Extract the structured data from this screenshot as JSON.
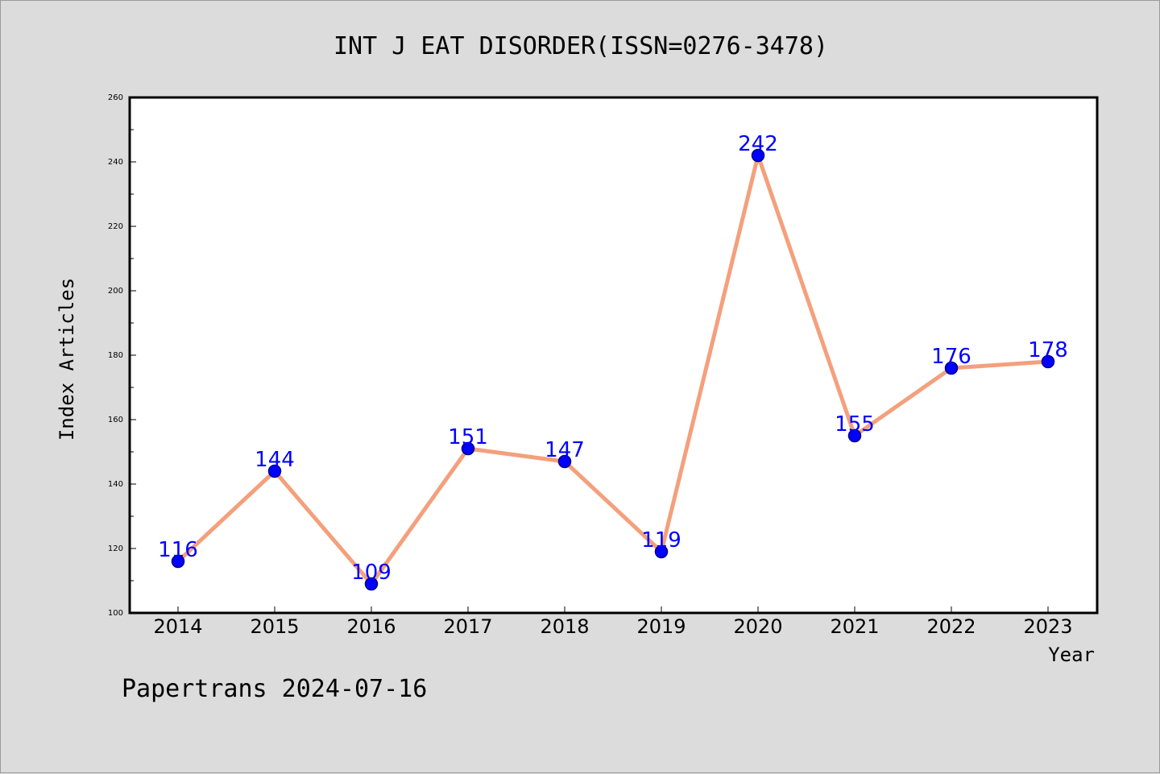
{
  "chart_data": {
    "type": "line",
    "title": "INT J EAT DISORDER(ISSN=0276-3478)",
    "xlabel": "Year",
    "ylabel": "Index Articles",
    "categories": [
      "2014",
      "2015",
      "2016",
      "2017",
      "2018",
      "2019",
      "2020",
      "2021",
      "2022",
      "2023"
    ],
    "values": [
      116,
      144,
      109,
      151,
      147,
      119,
      242,
      155,
      176,
      178
    ],
    "data_labels": [
      "116",
      "144",
      "109",
      "151",
      "147",
      "119",
      "242",
      "155",
      "176",
      "178"
    ],
    "ylim": [
      100,
      260
    ],
    "y_ticks": [
      100,
      120,
      140,
      160,
      180,
      200,
      220,
      240,
      260
    ],
    "y_tick_labels": [
      "100",
      "120",
      "140",
      "160",
      "180",
      "200",
      "220",
      "240",
      "260"
    ],
    "y_minor_ticks": [
      110,
      130,
      150,
      170,
      190,
      210,
      230,
      250
    ],
    "grid": false,
    "legend": "none",
    "colors": {
      "line": "#f4a07c",
      "marker": "#0000ff",
      "marker_edge": "#00008b",
      "data_label": "#0000ff",
      "background": "#dcdcdc",
      "plot_area": "#ffffff"
    }
  },
  "footer": {
    "text": "Papertrans 2024-07-16"
  }
}
